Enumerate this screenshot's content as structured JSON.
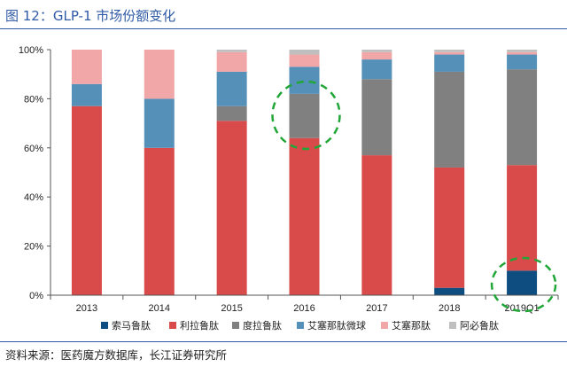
{
  "header": {
    "title": "图 12：GLP-1 市场份额变化"
  },
  "footer": {
    "source": "资料来源：医药魔方数据库，长江证券研究所"
  },
  "colors": {
    "title": "#2f5aa5",
    "annotation_circle": "#21a637"
  },
  "chart_data": {
    "type": "bar",
    "stacked": true,
    "categories": [
      "2013",
      "2014",
      "2015",
      "2016",
      "2017",
      "2018",
      "2019Q1"
    ],
    "ylim": [
      0,
      100
    ],
    "yticks": [
      0,
      20,
      40,
      60,
      80,
      100
    ],
    "ytick_labels": [
      "0%",
      "20%",
      "40%",
      "60%",
      "80%",
      "100%"
    ],
    "grid": false,
    "legend_position": "bottom",
    "series": [
      {
        "name": "索马鲁肽",
        "color": "#0d4d80",
        "values": [
          0,
          0,
          0,
          0,
          0,
          3,
          10
        ]
      },
      {
        "name": "利拉鲁肽",
        "color": "#d94a4b",
        "values": [
          77,
          60,
          71,
          64,
          57,
          49,
          43
        ]
      },
      {
        "name": "度拉鲁肽",
        "color": "#808080",
        "values": [
          0,
          0,
          6,
          18,
          31,
          39,
          39
        ]
      },
      {
        "name": "艾塞那肽微球",
        "color": "#5590b9",
        "values": [
          9,
          20,
          14,
          11,
          8,
          7,
          6
        ]
      },
      {
        "name": "艾塞那肽",
        "color": "#f1a7a8",
        "values": [
          14,
          20,
          8,
          5,
          3,
          1,
          1
        ]
      },
      {
        "name": "阿必鲁肽",
        "color": "#bfbfbf",
        "values": [
          0,
          0,
          1,
          2,
          1,
          1,
          1
        ]
      }
    ],
    "highlighted_categories": [
      "2016",
      "2019Q1"
    ]
  }
}
